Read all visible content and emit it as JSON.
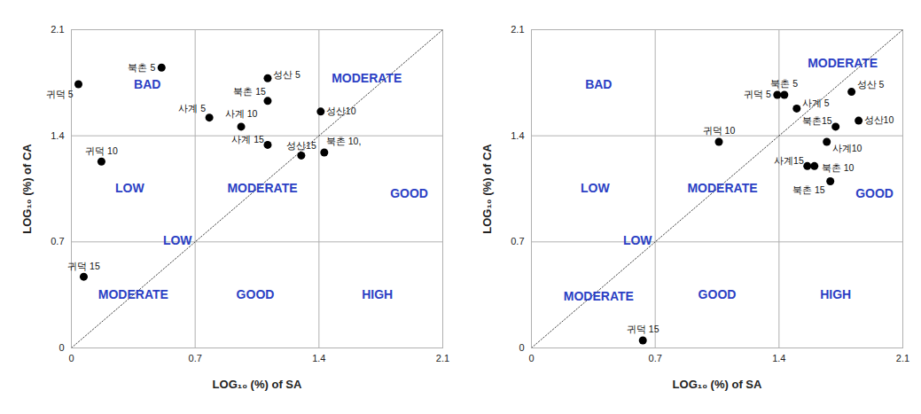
{
  "chart_data": [
    {
      "type": "scatter",
      "xlabel": "LOG₁₀ (%) of SA",
      "ylabel": "LOG₁₀ (%) of CA",
      "xlim": [
        0,
        2.1
      ],
      "ylim": [
        0,
        2.1
      ],
      "xticks": [
        0,
        0.7,
        1.4,
        2.1
      ],
      "yticks": [
        0,
        0.7,
        1.4,
        2.1
      ],
      "grid": true,
      "color": "#000000",
      "marker": "circle",
      "labels": [
        "귀덕 5",
        "북촌 5",
        "성산 5",
        "북촌 15",
        "사계 5",
        "사계 10",
        "성산10",
        "사계 15",
        "성산15",
        "북촌 10,",
        "귀덕 10",
        "귀덕 15"
      ],
      "x": [
        0.04,
        0.51,
        1.11,
        1.11,
        0.78,
        0.96,
        1.41,
        1.11,
        1.3,
        1.43,
        0.17,
        0.07
      ],
      "values": [
        1.74,
        1.85,
        1.78,
        1.63,
        1.52,
        1.46,
        1.56,
        1.34,
        1.27,
        1.29,
        1.23,
        0.47
      ],
      "annotations": [
        {
          "text": "BAD",
          "x": 0.43,
          "y": 1.74
        },
        {
          "text": "MODERATE",
          "x": 1.67,
          "y": 1.78
        },
        {
          "text": "LOW",
          "x": 0.33,
          "y": 1.05
        },
        {
          "text": "MODERATE",
          "x": 1.08,
          "y": 1.05
        },
        {
          "text": "GOOD",
          "x": 1.91,
          "y": 1.02
        },
        {
          "text": "LOW",
          "x": 0.6,
          "y": 0.71
        },
        {
          "text": "MODERATE",
          "x": 0.35,
          "y": 0.35
        },
        {
          "text": "GOOD",
          "x": 1.04,
          "y": 0.35
        },
        {
          "text": "HIGH",
          "x": 1.73,
          "y": 0.35
        }
      ]
    },
    {
      "type": "scatter",
      "xlabel": "LOG₁₀ (%) of SA",
      "ylabel": "LOG₁₀ (%) of CA",
      "xlim": [
        0,
        2.1
      ],
      "ylim": [
        0,
        2.1
      ],
      "xticks": [
        0,
        0.7,
        1.4,
        2.1
      ],
      "yticks": [
        0,
        0.7,
        1.4,
        2.1
      ],
      "grid": true,
      "color": "#000000",
      "marker": "circle",
      "labels": [
        "귀덕 5",
        "북촌 5",
        "사계 5",
        "성산 5",
        "성산10",
        "북촌15",
        "귀덕 10",
        "사계10",
        "사계15",
        "북촌 10",
        "북촌 15",
        "귀덕 15"
      ],
      "x": [
        1.39,
        1.43,
        1.5,
        1.81,
        1.85,
        1.72,
        1.06,
        1.67,
        1.56,
        1.6,
        1.69,
        0.63
      ],
      "values": [
        1.67,
        1.67,
        1.58,
        1.69,
        1.5,
        1.46,
        1.36,
        1.36,
        1.2,
        1.2,
        1.1,
        0.05
      ],
      "annotations": [
        {
          "text": "BAD",
          "x": 0.38,
          "y": 1.74
        },
        {
          "text": "MODERATE",
          "x": 1.76,
          "y": 1.88
        },
        {
          "text": "LOW",
          "x": 0.36,
          "y": 1.05
        },
        {
          "text": "MODERATE",
          "x": 1.08,
          "y": 1.05
        },
        {
          "text": "GOOD",
          "x": 1.94,
          "y": 1.02
        },
        {
          "text": "LOW",
          "x": 0.6,
          "y": 0.71
        },
        {
          "text": "MODERATE",
          "x": 0.38,
          "y": 0.34
        },
        {
          "text": "GOOD",
          "x": 1.05,
          "y": 0.35
        },
        {
          "text": "HIGH",
          "x": 1.72,
          "y": 0.35
        }
      ]
    }
  ]
}
